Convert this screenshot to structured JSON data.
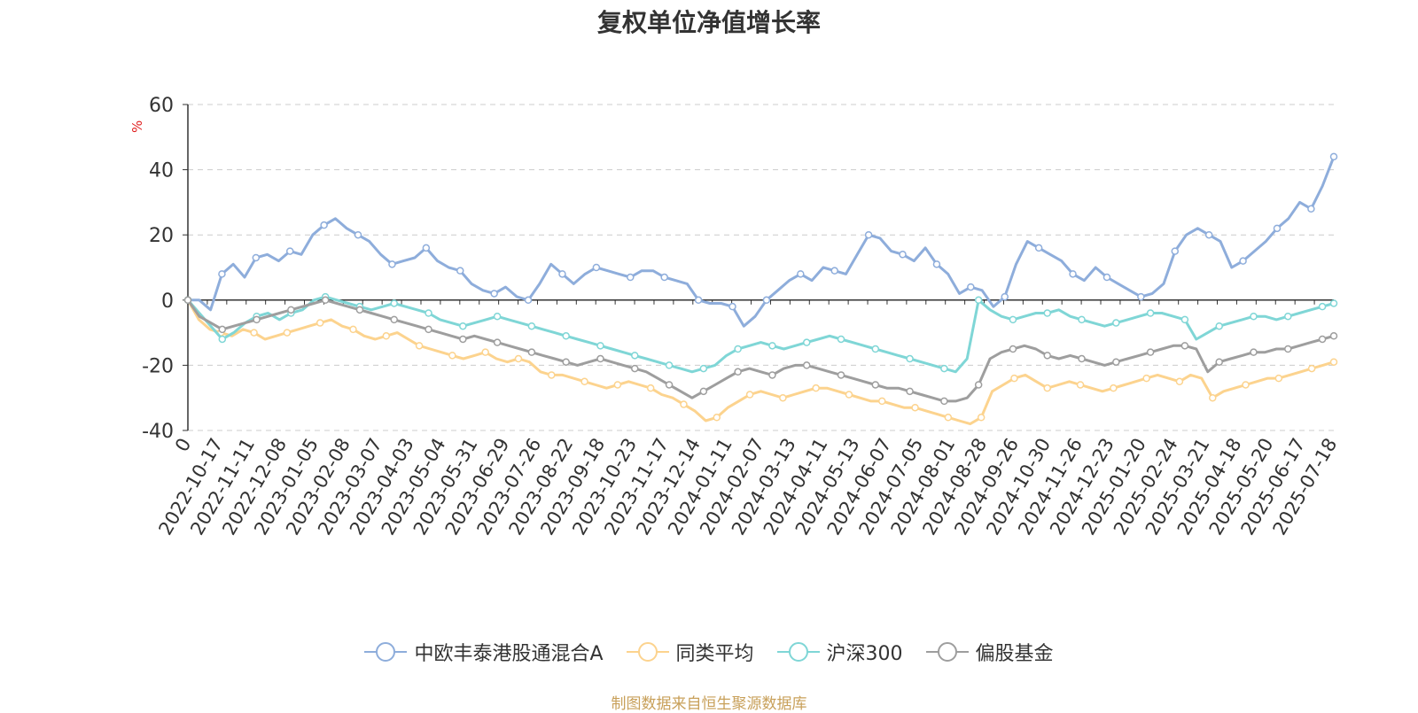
{
  "chart_data": {
    "type": "line",
    "title": "复权单位净值增长率",
    "ylabel": "%",
    "ylim": [
      -40,
      60
    ],
    "yticks": [
      -40,
      -20,
      0,
      20,
      40,
      60
    ],
    "grid": true,
    "legend_position": "bottom",
    "x_start_label": "0",
    "xticks": [
      "2022-10-17",
      "2022-11-11",
      "2022-12-08",
      "2023-01-05",
      "2023-02-08",
      "2023-03-07",
      "2023-04-03",
      "2023-05-04",
      "2023-05-31",
      "2023-06-29",
      "2023-07-26",
      "2023-08-22",
      "2023-09-18",
      "2023-10-23",
      "2023-11-17",
      "2023-12-14",
      "2024-01-11",
      "2024-02-07",
      "2024-03-13",
      "2024-04-11",
      "2024-05-13",
      "2024-06-07",
      "2024-07-05",
      "2024-08-01",
      "2024-08-28",
      "2024-09-26",
      "2024-10-30",
      "2024-11-26",
      "2024-12-23",
      "2025-01-20",
      "2025-02-24",
      "2025-03-21",
      "2025-04-18",
      "2025-05-20",
      "2025-06-17",
      "2025-07-18"
    ],
    "series": [
      {
        "name": "中欧丰泰港股通混合A",
        "color": "#8eaddb",
        "values": [
          0,
          0,
          -3,
          8,
          11,
          7,
          13,
          14,
          12,
          15,
          14,
          20,
          23,
          25,
          22,
          20,
          18,
          14,
          11,
          12,
          13,
          16,
          12,
          10,
          9,
          5,
          3,
          2,
          4,
          1,
          0,
          5,
          11,
          8,
          5,
          8,
          10,
          9,
          8,
          7,
          9,
          9,
          7,
          6,
          5,
          0,
          -1,
          -1,
          -2,
          -8,
          -5,
          0,
          3,
          6,
          8,
          6,
          10,
          9,
          8,
          14,
          20,
          19,
          15,
          14,
          12,
          16,
          11,
          8,
          2,
          4,
          3,
          -2,
          1,
          11,
          18,
          16,
          14,
          12,
          8,
          6,
          10,
          7,
          5,
          3,
          1,
          2,
          5,
          15,
          20,
          22,
          20,
          18,
          10,
          12,
          15,
          18,
          22,
          25,
          30,
          28,
          35,
          44
        ],
        "show_labels": false
      },
      {
        "name": "同类平均",
        "color": "#fcd38e",
        "values": [
          0,
          -6,
          -9,
          -10,
          -11,
          -9,
          -10,
          -12,
          -11,
          -10,
          -9,
          -8,
          -7,
          -6,
          -8,
          -9,
          -11,
          -12,
          -11,
          -10,
          -12,
          -14,
          -15,
          -16,
          -17,
          -18,
          -17,
          -16,
          -18,
          -19,
          -18,
          -19,
          -22,
          -23,
          -23,
          -24,
          -25,
          -26,
          -27,
          -26,
          -25,
          -26,
          -27,
          -29,
          -30,
          -32,
          -34,
          -37,
          -36,
          -33,
          -31,
          -29,
          -28,
          -29,
          -30,
          -29,
          -28,
          -27,
          -27,
          -28,
          -29,
          -30,
          -31,
          -31,
          -32,
          -33,
          -33,
          -34,
          -35,
          -36,
          -37,
          -38,
          -36,
          -28,
          -26,
          -24,
          -23,
          -25,
          -27,
          -26,
          -25,
          -26,
          -27,
          -28,
          -27,
          -26,
          -25,
          -24,
          -23,
          -24,
          -25,
          -23,
          -24,
          -30,
          -28,
          -27,
          -26,
          -25,
          -24,
          -24,
          -23,
          -22,
          -21,
          -20,
          -19
        ],
        "show_labels": false
      },
      {
        "name": "沪深300",
        "color": "#7fd6d6",
        "values": [
          0,
          -4,
          -8,
          -12,
          -10,
          -7,
          -5,
          -4,
          -6,
          -4,
          -3,
          0,
          1,
          0,
          -1,
          -2,
          -3,
          -2,
          -1,
          -2,
          -3,
          -4,
          -6,
          -7,
          -8,
          -7,
          -6,
          -5,
          -6,
          -7,
          -8,
          -9,
          -10,
          -11,
          -12,
          -13,
          -14,
          -15,
          -16,
          -17,
          -18,
          -19,
          -20,
          -21,
          -22,
          -21,
          -20,
          -17,
          -15,
          -14,
          -13,
          -14,
          -15,
          -14,
          -13,
          -12,
          -11,
          -12,
          -13,
          -14,
          -15,
          -16,
          -17,
          -18,
          -19,
          -20,
          -21,
          -22,
          -18,
          0,
          -3,
          -5,
          -6,
          -5,
          -4,
          -4,
          -3,
          -5,
          -6,
          -7,
          -8,
          -7,
          -6,
          -5,
          -4,
          -4,
          -5,
          -6,
          -12,
          -10,
          -8,
          -7,
          -6,
          -5,
          -5,
          -6,
          -5,
          -4,
          -3,
          -2,
          -1
        ],
        "show_labels": false
      },
      {
        "name": "偏股基金",
        "color": "#9e9e9e",
        "values": [
          0,
          -5,
          -7,
          -9,
          -8,
          -7,
          -6,
          -5,
          -4,
          -3,
          -2,
          -1,
          0,
          -1,
          -2,
          -3,
          -4,
          -5,
          -6,
          -7,
          -8,
          -9,
          -10,
          -11,
          -12,
          -11,
          -12,
          -13,
          -14,
          -15,
          -16,
          -17,
          -18,
          -19,
          -20,
          -19,
          -18,
          -19,
          -20,
          -21,
          -22,
          -24,
          -26,
          -28,
          -30,
          -28,
          -26,
          -24,
          -22,
          -21,
          -22,
          -23,
          -21,
          -20,
          -20,
          -21,
          -22,
          -23,
          -24,
          -25,
          -26,
          -27,
          -27,
          -28,
          -29,
          -30,
          -31,
          -31,
          -30,
          -26,
          -18,
          -16,
          -15,
          -14,
          -15,
          -17,
          -18,
          -17,
          -18,
          -19,
          -20,
          -19,
          -18,
          -17,
          -16,
          -15,
          -14,
          -14,
          -15,
          -22,
          -19,
          -18,
          -17,
          -16,
          -16,
          -15,
          -15,
          -14,
          -13,
          -12,
          -11
        ],
        "show_labels": false
      }
    ]
  },
  "source": "制图数据来自恒生聚源数据库"
}
